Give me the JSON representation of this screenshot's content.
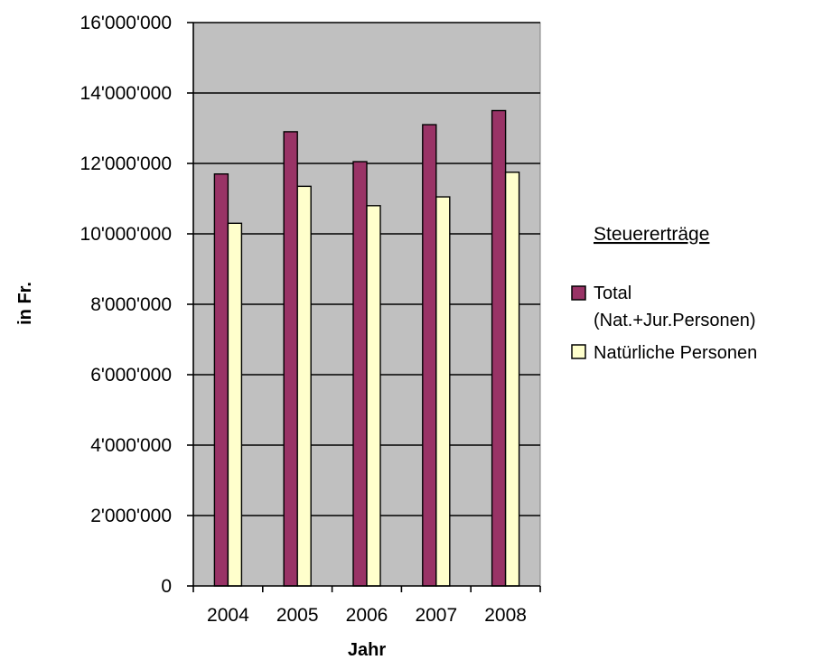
{
  "chart_data": {
    "type": "bar",
    "categories": [
      "2004",
      "2005",
      "2006",
      "2007",
      "2008"
    ],
    "series": [
      {
        "name": "Total",
        "name_line2": "(Nat.+Jur.Personen)",
        "color": "#993366",
        "values": [
          11700000,
          12900000,
          12050000,
          13100000,
          13500000
        ]
      },
      {
        "name": "Natürliche Personen",
        "color": "#FFFFCC",
        "values": [
          10300000,
          11350000,
          10800000,
          11050000,
          11750000
        ]
      }
    ],
    "title": "",
    "xlabel": "Jahr",
    "ylabel": "in Fr.",
    "ylim": [
      0,
      16000000
    ],
    "yticks": [
      0,
      2000000,
      4000000,
      6000000,
      8000000,
      10000000,
      12000000,
      14000000,
      16000000
    ],
    "ytick_labels": [
      "0",
      "2'000'000",
      "4'000'000",
      "6'000'000",
      "8'000'000",
      "10'000'000",
      "12'000'000",
      "14'000'000",
      "16'000'000"
    ],
    "legend_title": "Steuererträge",
    "legend_position": "right",
    "grid": true,
    "plot_background": "#C0C0C0"
  }
}
